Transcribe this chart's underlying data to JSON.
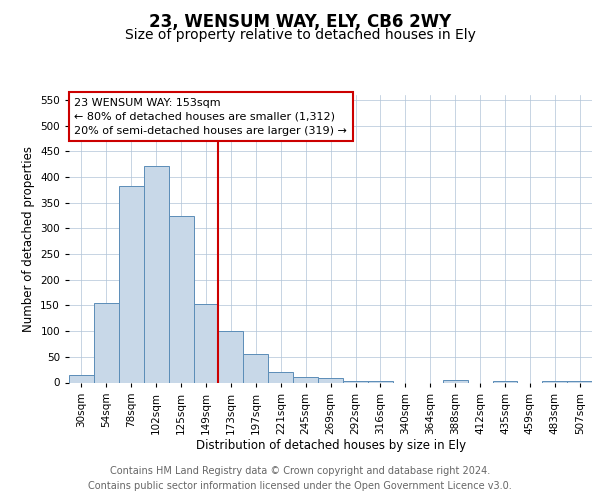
{
  "title": "23, WENSUM WAY, ELY, CB6 2WY",
  "subtitle": "Size of property relative to detached houses in Ely",
  "xlabel": "Distribution of detached houses by size in Ely",
  "ylabel": "Number of detached properties",
  "annotation_line1": "23 WENSUM WAY: 153sqm",
  "annotation_line2": "← 80% of detached houses are smaller (1,312)",
  "annotation_line3": "20% of semi-detached houses are larger (319) →",
  "footer_line1": "Contains HM Land Registry data © Crown copyright and database right 2024.",
  "footer_line2": "Contains public sector information licensed under the Open Government Licence v3.0.",
  "bar_labels": [
    "30sqm",
    "54sqm",
    "78sqm",
    "102sqm",
    "125sqm",
    "149sqm",
    "173sqm",
    "197sqm",
    "221sqm",
    "245sqm",
    "269sqm",
    "292sqm",
    "316sqm",
    "340sqm",
    "364sqm",
    "388sqm",
    "412sqm",
    "435sqm",
    "459sqm",
    "483sqm",
    "507sqm"
  ],
  "bar_values": [
    15,
    155,
    382,
    422,
    325,
    152,
    100,
    55,
    20,
    10,
    8,
    3,
    3,
    0,
    0,
    4,
    0,
    3,
    0,
    3,
    3
  ],
  "bar_color": "#c8d8e8",
  "bar_edge_color": "#5b8db8",
  "vline_x": 5.5,
  "vline_color": "#cc0000",
  "ylim": [
    0,
    560
  ],
  "yticks": [
    0,
    50,
    100,
    150,
    200,
    250,
    300,
    350,
    400,
    450,
    500,
    550
  ],
  "background_color": "#ffffff",
  "grid_color": "#b0c4d8",
  "annotation_box_color": "#cc0000",
  "title_fontsize": 12,
  "subtitle_fontsize": 10,
  "axis_label_fontsize": 8.5,
  "tick_fontsize": 7.5,
  "footer_fontsize": 7,
  "annotation_fontsize": 8
}
